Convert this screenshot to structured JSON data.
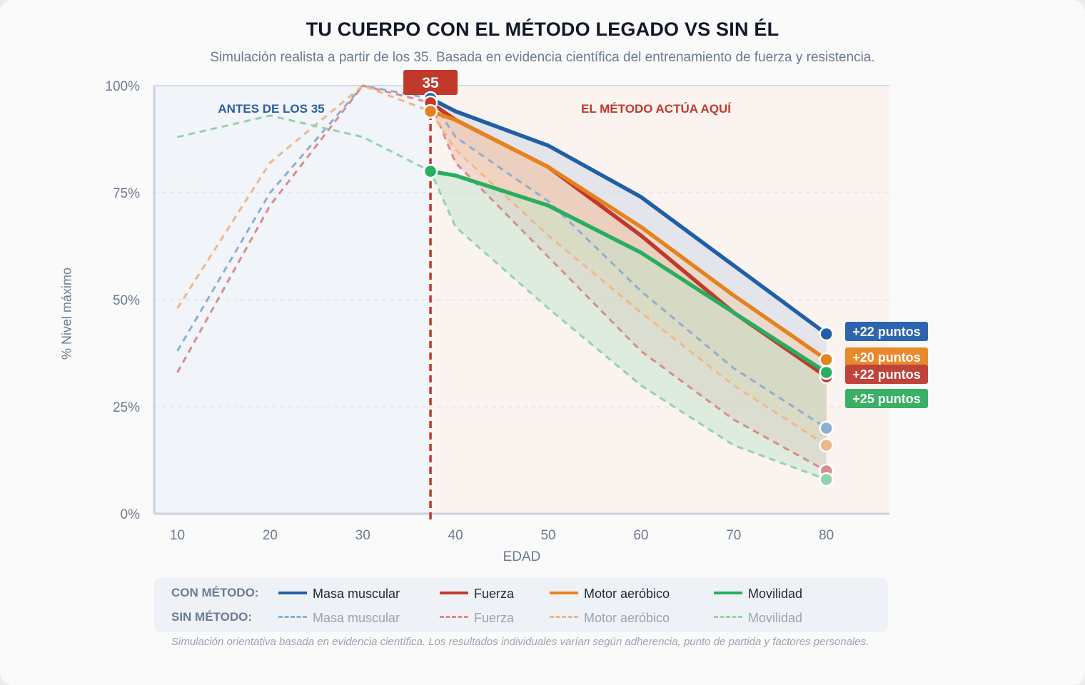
{
  "title": "TU CUERPO CON EL MÉTODO LEGADO VS SIN ÉL",
  "subtitle": "Simulación realista a partir de los 35. Basada en evidencia científica del entrenamiento de fuerza y resistencia.",
  "chart_data": {
    "type": "line",
    "xlabel": "EDAD",
    "ylabel": "% Nivel máximo",
    "xlim": [
      7.5,
      86.8
    ],
    "ylim": [
      0,
      100
    ],
    "x_ticks": [
      10,
      20,
      30,
      40,
      50,
      60,
      70,
      80
    ],
    "y_ticks": [
      {
        "value": 0,
        "label": "0%"
      },
      {
        "value": 25,
        "label": "25%"
      },
      {
        "value": 50,
        "label": "50%"
      },
      {
        "value": 75,
        "label": "75%"
      },
      {
        "value": 100,
        "label": "100%"
      }
    ],
    "grid": true,
    "marker_label": "35",
    "marker_x": 37.3,
    "region_left_label": "ANTES DE LOS 35",
    "region_right_label": "EL MÉTODO ACTÚA AQUÍ",
    "series_without": [
      {
        "name": "Masa muscular",
        "color": "#8eaed3",
        "x": [
          10,
          20,
          30,
          37.3,
          40,
          50,
          60,
          70,
          80
        ],
        "values": [
          38,
          75,
          100,
          97,
          88,
          73,
          52,
          34,
          20
        ]
      },
      {
        "name": "Fuerza",
        "color": "#d98c8a",
        "x": [
          10,
          20,
          30,
          37.3,
          40,
          50,
          60,
          70,
          80
        ],
        "values": [
          33,
          72,
          100,
          96,
          82,
          60,
          38,
          22,
          10
        ]
      },
      {
        "name": "Motor aeróbico",
        "color": "#eeb78a",
        "x": [
          10,
          20,
          30,
          37.3,
          40,
          50,
          60,
          70,
          80
        ],
        "values": [
          48,
          82,
          100,
          94,
          85,
          65,
          47,
          30,
          16
        ]
      },
      {
        "name": "Movilidad",
        "color": "#93d2ad",
        "x": [
          10,
          20,
          30,
          37.3,
          40,
          50,
          60,
          70,
          80
        ],
        "values": [
          88,
          93,
          88,
          80,
          67,
          48,
          30,
          16,
          8
        ]
      }
    ],
    "series_with": [
      {
        "name": "Masa muscular",
        "color": "#1f5fa8",
        "fill": "#c9d3e6",
        "x": [
          37.3,
          40,
          50,
          60,
          70,
          80
        ],
        "values": [
          97,
          94,
          86,
          74,
          58,
          42
        ]
      },
      {
        "name": "Fuerza",
        "color": "#c0392b",
        "fill": "#eab7ae",
        "x": [
          37.3,
          40,
          50,
          60,
          70,
          80
        ],
        "values": [
          96,
          92,
          81,
          65,
          47,
          32
        ]
      },
      {
        "name": "Motor aeróbico",
        "color": "#e6821e",
        "fill": "#f2cfa9",
        "x": [
          37.3,
          40,
          50,
          60,
          70,
          80
        ],
        "values": [
          94,
          92,
          81,
          67,
          51,
          36
        ]
      },
      {
        "name": "Movilidad",
        "color": "#27ae60",
        "fill": "#bde5cb",
        "x": [
          37.3,
          40,
          50,
          60,
          70,
          80
        ],
        "values": [
          80,
          79,
          72,
          61,
          47,
          33
        ]
      }
    ],
    "gain_badges": [
      {
        "label": "+22 puntos",
        "color": "#2e65ae"
      },
      {
        "label": "+20 puntos",
        "color": "#e8892c"
      },
      {
        "label": "+22 puntos",
        "color": "#c0433a"
      },
      {
        "label": "+25 puntos",
        "color": "#3aaf66"
      }
    ]
  },
  "legend": {
    "with_label": "CON MÉTODO:",
    "without_label": "SIN MÉTODO:",
    "items": [
      {
        "label": "Masa muscular",
        "color_solid": "#1f5fa8",
        "color_dash": "#8eaed3"
      },
      {
        "label": "Fuerza",
        "color_solid": "#c0392b",
        "color_dash": "#d98c8a"
      },
      {
        "label": "Motor aeróbico",
        "color_solid": "#e6821e",
        "color_dash": "#eeb78a"
      },
      {
        "label": "Movilidad",
        "color_solid": "#27ae60",
        "color_dash": "#93d2ad"
      }
    ]
  },
  "footnote": "Simulación orientativa basada en evidencia científica. Los resultados individuales varían según adherencia, punto de partida y factores personales."
}
